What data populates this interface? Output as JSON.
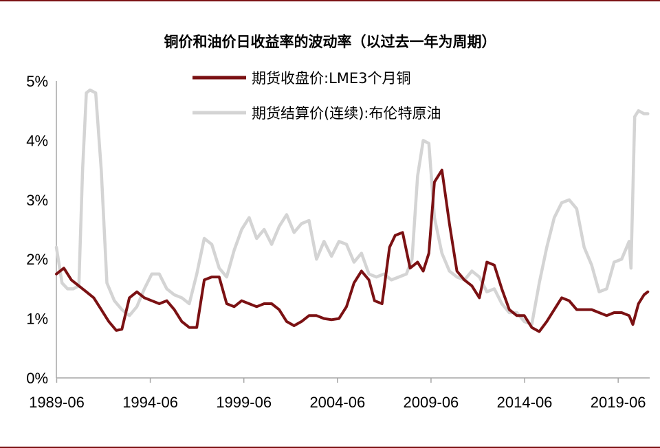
{
  "chart_data": {
    "type": "line",
    "title": "铜价和油价日收益率的波动率（以过去一年为周期）",
    "xlabel": "",
    "ylabel": "",
    "x_ticks": [
      "1989-06",
      "1994-06",
      "1999-06",
      "2004-06",
      "2009-06",
      "2014-06",
      "2019-06"
    ],
    "y_ticks": [
      "0%",
      "1%",
      "2%",
      "3%",
      "4%",
      "5%"
    ],
    "ylim": [
      0,
      5
    ],
    "xlim": [
      1989.4,
      2021.1
    ],
    "grid": false,
    "legend_position": "top-center",
    "series": [
      {
        "name": "期货收盘价:LME3个月铜",
        "color": "#7b1113",
        "x": [
          1989.4,
          1989.8,
          1990.2,
          1990.6,
          1991.0,
          1991.4,
          1991.8,
          1992.2,
          1992.6,
          1992.9,
          1993.3,
          1993.7,
          1994.1,
          1994.5,
          1994.9,
          1995.3,
          1995.7,
          1996.1,
          1996.5,
          1996.9,
          1997.3,
          1997.7,
          1998.1,
          1998.5,
          1998.9,
          1999.3,
          1999.7,
          2000.1,
          2000.5,
          2000.9,
          2001.3,
          2001.7,
          2002.1,
          2002.5,
          2002.9,
          2003.3,
          2003.7,
          2004.1,
          2004.5,
          2004.9,
          2005.3,
          2005.7,
          2006.1,
          2006.4,
          2006.8,
          2007.2,
          2007.5,
          2007.9,
          2008.3,
          2008.7,
          2009.0,
          2009.3,
          2009.6,
          2010.0,
          2010.4,
          2010.8,
          2011.2,
          2011.6,
          2012.0,
          2012.4,
          2012.8,
          2013.2,
          2013.6,
          2014.0,
          2014.4,
          2014.8,
          2015.2,
          2015.6,
          2016.0,
          2016.4,
          2016.8,
          2017.2,
          2017.6,
          2018.0,
          2018.4,
          2018.8,
          2019.2,
          2019.6,
          2020.0,
          2020.2,
          2020.5,
          2020.8,
          2021.0
        ],
        "values": [
          1.75,
          1.85,
          1.65,
          1.55,
          1.45,
          1.35,
          1.15,
          0.95,
          0.8,
          0.82,
          1.35,
          1.45,
          1.35,
          1.3,
          1.25,
          1.3,
          1.15,
          0.95,
          0.85,
          0.85,
          1.65,
          1.7,
          1.7,
          1.25,
          1.2,
          1.3,
          1.25,
          1.2,
          1.25,
          1.25,
          1.15,
          0.95,
          0.88,
          0.95,
          1.05,
          1.05,
          1.0,
          0.98,
          1.0,
          1.2,
          1.6,
          1.8,
          1.65,
          1.3,
          1.25,
          2.2,
          2.4,
          2.45,
          1.85,
          1.95,
          1.8,
          2.1,
          3.3,
          3.5,
          2.6,
          1.8,
          1.65,
          1.55,
          1.35,
          1.95,
          1.9,
          1.5,
          1.15,
          1.05,
          1.05,
          0.85,
          0.78,
          0.95,
          1.15,
          1.35,
          1.3,
          1.15,
          1.15,
          1.15,
          1.1,
          1.05,
          1.1,
          1.1,
          1.05,
          0.9,
          1.25,
          1.4,
          1.45
        ]
      },
      {
        "name": "期货结算价(连续):布伦特原油",
        "color": "#d4d4d4",
        "x": [
          1989.4,
          1989.7,
          1990.0,
          1990.3,
          1990.6,
          1990.8,
          1991.0,
          1991.2,
          1991.5,
          1991.8,
          1992.1,
          1992.5,
          1992.9,
          1993.3,
          1993.7,
          1994.1,
          1994.5,
          1994.9,
          1995.3,
          1995.7,
          1996.1,
          1996.5,
          1996.9,
          1997.3,
          1997.7,
          1998.1,
          1998.5,
          1998.9,
          1999.3,
          1999.7,
          2000.1,
          2000.5,
          2000.9,
          2001.3,
          2001.7,
          2002.1,
          2002.5,
          2002.9,
          2003.3,
          2003.7,
          2004.1,
          2004.5,
          2004.9,
          2005.3,
          2005.7,
          2006.1,
          2006.5,
          2006.9,
          2007.3,
          2007.7,
          2008.1,
          2008.4,
          2008.7,
          2009.0,
          2009.3,
          2009.6,
          2010.0,
          2010.4,
          2010.8,
          2011.2,
          2011.6,
          2012.0,
          2012.4,
          2012.8,
          2013.2,
          2013.6,
          2014.0,
          2014.4,
          2014.8,
          2015.2,
          2015.6,
          2016.0,
          2016.4,
          2016.8,
          2017.2,
          2017.6,
          2018.0,
          2018.4,
          2018.8,
          2019.2,
          2019.6,
          2020.0,
          2020.1,
          2020.3,
          2020.5,
          2020.8,
          2021.0
        ],
        "values": [
          2.2,
          1.6,
          1.5,
          1.5,
          1.55,
          3.5,
          4.8,
          4.85,
          4.8,
          3.5,
          1.6,
          1.3,
          1.15,
          1.05,
          1.2,
          1.5,
          1.75,
          1.75,
          1.5,
          1.4,
          1.35,
          1.25,
          1.75,
          2.35,
          2.25,
          1.85,
          1.7,
          2.15,
          2.5,
          2.7,
          2.35,
          2.5,
          2.25,
          2.55,
          2.75,
          2.45,
          2.6,
          2.65,
          2.0,
          2.3,
          2.05,
          2.3,
          2.25,
          1.95,
          2.1,
          1.75,
          1.7,
          1.75,
          1.65,
          1.7,
          1.75,
          2.0,
          3.4,
          4.0,
          3.95,
          2.7,
          2.1,
          1.8,
          1.7,
          1.65,
          1.8,
          1.7,
          1.45,
          1.5,
          1.25,
          1.1,
          1.1,
          0.95,
          0.9,
          1.6,
          2.2,
          2.7,
          2.95,
          3.0,
          2.85,
          2.2,
          1.9,
          1.45,
          1.5,
          1.95,
          2.0,
          2.3,
          1.85,
          4.4,
          4.5,
          4.45,
          4.45
        ]
      }
    ]
  }
}
